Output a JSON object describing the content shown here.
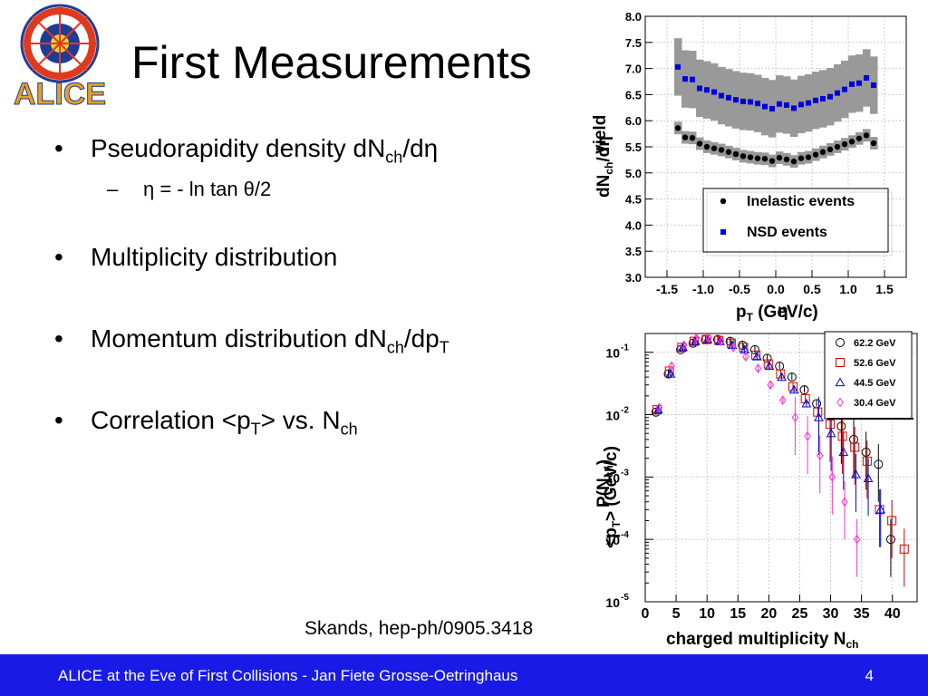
{
  "slide": {
    "title": "First Measurements",
    "bullets": [
      {
        "text": "Pseudorapidity density dN",
        "sub": "ch",
        "rest": "/dη"
      },
      {
        "text": "Multiplicity distribution"
      },
      {
        "text": "Momentum distribution dN",
        "sub": "ch",
        "rest": "/dp",
        "sub2": "T"
      },
      {
        "text": "Correlation <p",
        "sub": "T",
        "rest": "> vs. N",
        "sub2": "ch"
      }
    ],
    "subbullet": {
      "text": "η = - ln tan θ/2"
    },
    "credit": "Skands, hep-ph/0905.3418",
    "footer": "ALICE at the Eve of First Collisions  - Jan Fiete Grosse-Oetringhaus",
    "page": "4",
    "logo_text": "ALICE"
  },
  "colors": {
    "footer_bg": "#1a1ae6",
    "logo_red": "#e03a1e",
    "logo_blue": "#1e3c96"
  },
  "chart_data": [
    {
      "type": "scatter",
      "xlabel_overlaid": [
        "p",
        "T",
        " (GeV/c)",
        "η"
      ],
      "ylabel_overlaid": [
        "dN",
        "ch",
        "/dη",
        "yield"
      ],
      "xlim": [
        -1.8,
        1.8
      ],
      "ylim": [
        3.0,
        8.0
      ],
      "xticks": [
        "-1.5",
        "-1.0",
        "-0.5",
        "0.0",
        "0.5",
        "1.0",
        "1.5"
      ],
      "yticks": [
        "3.0",
        "3.5",
        "4.0",
        "4.5",
        "5.0",
        "5.5",
        "6.0",
        "6.5",
        "7.0",
        "7.5",
        "8.0"
      ],
      "grid": true,
      "legend_position": "bottom-right",
      "x": [
        -1.35,
        -1.25,
        -1.15,
        -1.05,
        -0.95,
        -0.85,
        -0.75,
        -0.65,
        -0.55,
        -0.45,
        -0.35,
        -0.25,
        -0.15,
        -0.05,
        0.05,
        0.15,
        0.25,
        0.35,
        0.45,
        0.55,
        0.65,
        0.75,
        0.85,
        0.95,
        1.05,
        1.15,
        1.25,
        1.35
      ],
      "series": [
        {
          "name": "Inelastic events",
          "marker": "circle",
          "color": "#000000",
          "values": [
            5.86,
            5.68,
            5.67,
            5.56,
            5.5,
            5.47,
            5.44,
            5.4,
            5.36,
            5.32,
            5.3,
            5.28,
            5.27,
            5.23,
            5.29,
            5.26,
            5.22,
            5.28,
            5.3,
            5.35,
            5.4,
            5.45,
            5.5,
            5.55,
            5.6,
            5.66,
            5.72,
            5.57
          ],
          "band_half_width": 0.12
        },
        {
          "name": "NSD events",
          "marker": "square",
          "color": "#0000dd",
          "values": [
            7.03,
            6.8,
            6.79,
            6.62,
            6.59,
            6.55,
            6.48,
            6.44,
            6.4,
            6.37,
            6.36,
            6.33,
            6.27,
            6.23,
            6.32,
            6.3,
            6.24,
            6.31,
            6.34,
            6.39,
            6.42,
            6.46,
            6.53,
            6.6,
            6.7,
            6.72,
            6.82,
            6.68
          ],
          "band_half_width": 0.55
        }
      ]
    },
    {
      "type": "scatter",
      "log_y": true,
      "xlabel": [
        "charged multiplicity N",
        "ch"
      ],
      "ylabel_overlaid": [
        "P(N",
        "ch",
        ")",
        "<p",
        "T",
        "> (GeV/c)"
      ],
      "xlim": [
        0,
        44
      ],
      "ylim": [
        1e-05,
        0.2
      ],
      "xticks": [
        0,
        5,
        10,
        15,
        20,
        25,
        30,
        35,
        40
      ],
      "xtick_labels": [
        "0",
        "5",
        "10",
        "15",
        "20",
        "25",
        "30",
        "35",
        "40"
      ],
      "ytick_exponents": [
        "-1",
        "-2",
        "-3",
        "-4",
        "-5"
      ],
      "grid": true,
      "legend_position": "top-right",
      "series": [
        {
          "name": "62.2 GeV",
          "marker": "circle",
          "color": "#000000",
          "x": [
            2,
            4,
            6,
            8,
            10,
            12,
            14,
            16,
            18,
            20,
            22,
            24,
            26,
            28,
            30,
            32,
            34,
            36,
            38,
            40
          ],
          "values": [
            0.011,
            0.045,
            0.11,
            0.14,
            0.16,
            0.16,
            0.15,
            0.13,
            0.11,
            0.08,
            0.06,
            0.04,
            0.025,
            0.015,
            0.01,
            0.0065,
            0.004,
            0.0025,
            0.0016,
            0.0001
          ]
        },
        {
          "name": "52.6 GeV",
          "marker": "square",
          "color": "#dd0000",
          "x": [
            2,
            4,
            6,
            8,
            10,
            12,
            14,
            16,
            18,
            20,
            22,
            24,
            26,
            28,
            30,
            32,
            34,
            36,
            38,
            40,
            42
          ],
          "values": [
            0.012,
            0.05,
            0.12,
            0.15,
            0.16,
            0.155,
            0.14,
            0.12,
            0.09,
            0.065,
            0.045,
            0.028,
            0.018,
            0.011,
            0.007,
            0.0045,
            0.003,
            0.0018,
            0.0003,
            0.0002,
            7e-05
          ]
        },
        {
          "name": "44.5 GeV",
          "marker": "triangle",
          "color": "#0000dd",
          "x": [
            2,
            4,
            6,
            8,
            10,
            12,
            14,
            16,
            18,
            20,
            22,
            24,
            26,
            28,
            30,
            32,
            34,
            36,
            38
          ],
          "values": [
            0.012,
            0.045,
            0.12,
            0.15,
            0.16,
            0.15,
            0.13,
            0.11,
            0.085,
            0.06,
            0.04,
            0.025,
            0.015,
            0.009,
            0.005,
            0.0025,
            0.0011,
            0.00095,
            0.0003
          ]
        },
        {
          "name": "30.4 GeV",
          "marker": "diamond",
          "color": "#ff33cc",
          "x": [
            2,
            4,
            6,
            8,
            10,
            12,
            14,
            16,
            18,
            20,
            22,
            24,
            26,
            28,
            30,
            32,
            34
          ],
          "values": [
            0.013,
            0.06,
            0.13,
            0.17,
            0.17,
            0.15,
            0.12,
            0.085,
            0.055,
            0.03,
            0.017,
            0.009,
            0.0045,
            0.0022,
            0.001,
            0.0004,
            0.0001
          ]
        }
      ]
    }
  ]
}
